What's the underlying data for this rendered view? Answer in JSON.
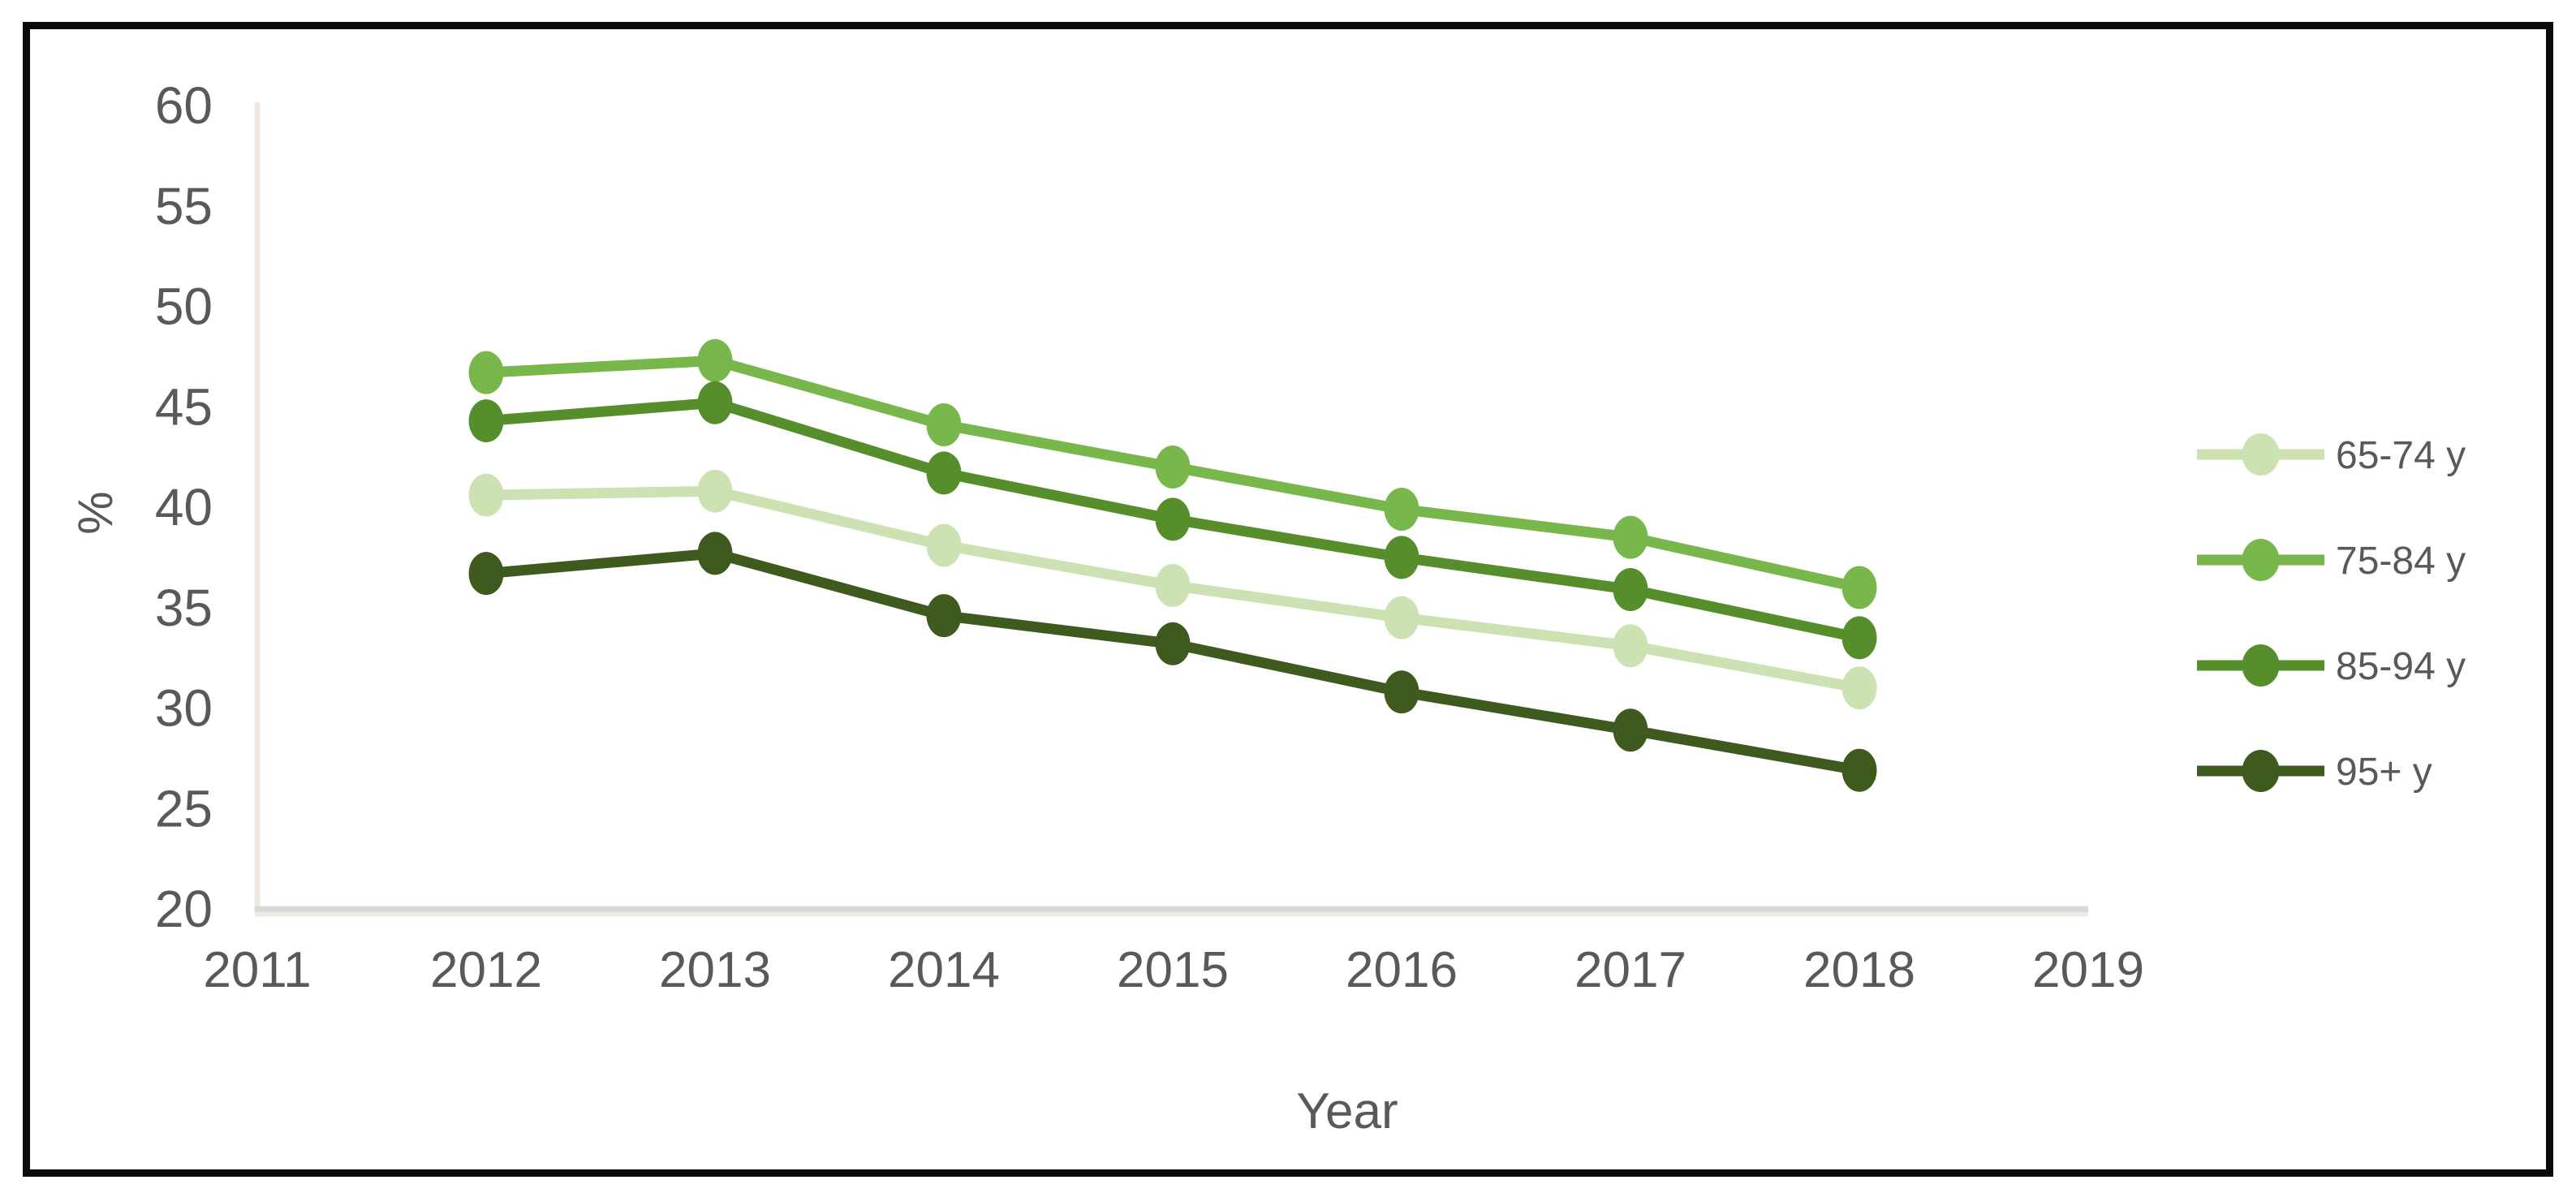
{
  "chart_data": {
    "type": "line",
    "title": "",
    "xlabel": "Year",
    "ylabel": "%",
    "x_tick_labels": [
      "2011",
      "2012",
      "2013",
      "2014",
      "2015",
      "2016",
      "2017",
      "2018",
      "2019"
    ],
    "y_ticks": [
      20,
      25,
      30,
      35,
      40,
      45,
      50,
      55,
      60
    ],
    "ylim": [
      20,
      60
    ],
    "grid": false,
    "legend_position": "right",
    "marker": "filled-ellipse",
    "series": [
      {
        "name": "65-74 y",
        "color": "#CDE2B3",
        "years": [
          2012,
          2013,
          2014,
          2015,
          2016,
          2017,
          2018
        ],
        "values": [
          40.6,
          40.8,
          38.1,
          36.1,
          34.5,
          33.1,
          31.0
        ]
      },
      {
        "name": "75-84 y",
        "color": "#77B74B",
        "years": [
          2012,
          2013,
          2014,
          2015,
          2016,
          2017,
          2018
        ],
        "values": [
          46.7,
          47.3,
          44.1,
          42.0,
          39.9,
          38.5,
          36.0
        ]
      },
      {
        "name": "85-94 y",
        "color": "#568E2C",
        "years": [
          2012,
          2013,
          2014,
          2015,
          2016,
          2017,
          2018
        ],
        "values": [
          44.3,
          45.2,
          41.7,
          39.4,
          37.5,
          35.9,
          33.5
        ]
      },
      {
        "name": "95+ y",
        "color": "#3F5A1E",
        "years": [
          2012,
          2013,
          2014,
          2015,
          2016,
          2017,
          2018
        ],
        "values": [
          36.7,
          37.7,
          34.6,
          33.2,
          30.8,
          28.9,
          26.9
        ]
      }
    ],
    "colors": {
      "tick_text": "#595959",
      "y_axis_line": "#EDE9DF",
      "x_axis_line": "#D9D9D9",
      "x_axis_shadow": "#ECEAE4",
      "frame_border": "#0a0a0a",
      "background": "#FFFFFF"
    }
  }
}
